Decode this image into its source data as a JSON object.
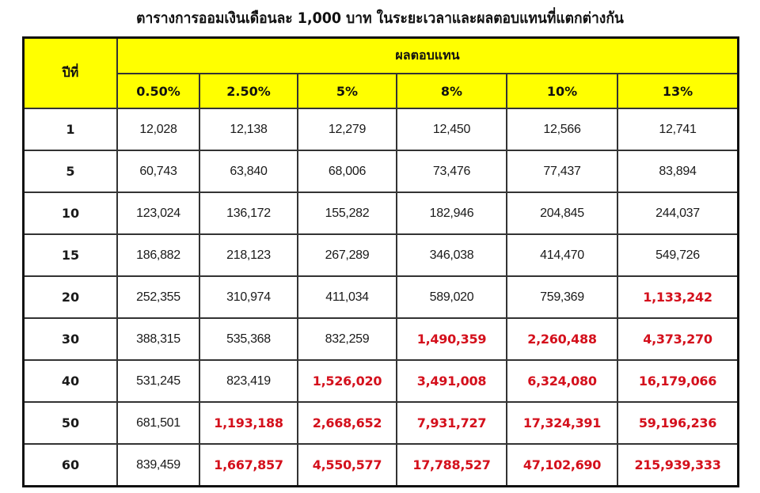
{
  "title": "ตารางการออมเงินเดือนละ 1,000 บาท ในระยะเวลาและผลตอบแทนที่แตกต่างกัน",
  "table": {
    "year_header": "ปีที่",
    "returns_header": "ผลตอบแทน",
    "rates": [
      "0.50%",
      "2.50%",
      "5%",
      "8%",
      "10%",
      "13%"
    ],
    "highlight_color": "#d4101c",
    "header_bg": "#ffff00",
    "rows": [
      {
        "year": "1",
        "values": [
          "12,028",
          "12,138",
          "12,279",
          "12,450",
          "12,566",
          "12,741"
        ],
        "highlight": [
          false,
          false,
          false,
          false,
          false,
          false
        ]
      },
      {
        "year": "5",
        "values": [
          "60,743",
          "63,840",
          "68,006",
          "73,476",
          "77,437",
          "83,894"
        ],
        "highlight": [
          false,
          false,
          false,
          false,
          false,
          false
        ]
      },
      {
        "year": "10",
        "values": [
          "123,024",
          "136,172",
          "155,282",
          "182,946",
          "204,845",
          "244,037"
        ],
        "highlight": [
          false,
          false,
          false,
          false,
          false,
          false
        ]
      },
      {
        "year": "15",
        "values": [
          "186,882",
          "218,123",
          "267,289",
          "346,038",
          "414,470",
          "549,726"
        ],
        "highlight": [
          false,
          false,
          false,
          false,
          false,
          false
        ]
      },
      {
        "year": "20",
        "values": [
          "252,355",
          "310,974",
          "411,034",
          "589,020",
          "759,369",
          "1,133,242"
        ],
        "highlight": [
          false,
          false,
          false,
          false,
          false,
          true
        ]
      },
      {
        "year": "30",
        "values": [
          "388,315",
          "535,368",
          "832,259",
          "1,490,359",
          "2,260,488",
          "4,373,270"
        ],
        "highlight": [
          false,
          false,
          false,
          true,
          true,
          true
        ]
      },
      {
        "year": "40",
        "values": [
          "531,245",
          "823,419",
          "1,526,020",
          "3,491,008",
          "6,324,080",
          "16,179,066"
        ],
        "highlight": [
          false,
          false,
          true,
          true,
          true,
          true
        ]
      },
      {
        "year": "50",
        "values": [
          "681,501",
          "1,193,188",
          "2,668,652",
          "7,931,727",
          "17,324,391",
          "59,196,236"
        ],
        "highlight": [
          false,
          true,
          true,
          true,
          true,
          true
        ]
      },
      {
        "year": "60",
        "values": [
          "839,459",
          "1,667,857",
          "4,550,577",
          "17,788,527",
          "47,102,690",
          "215,939,333"
        ],
        "highlight": [
          false,
          true,
          true,
          true,
          true,
          true
        ]
      }
    ]
  }
}
